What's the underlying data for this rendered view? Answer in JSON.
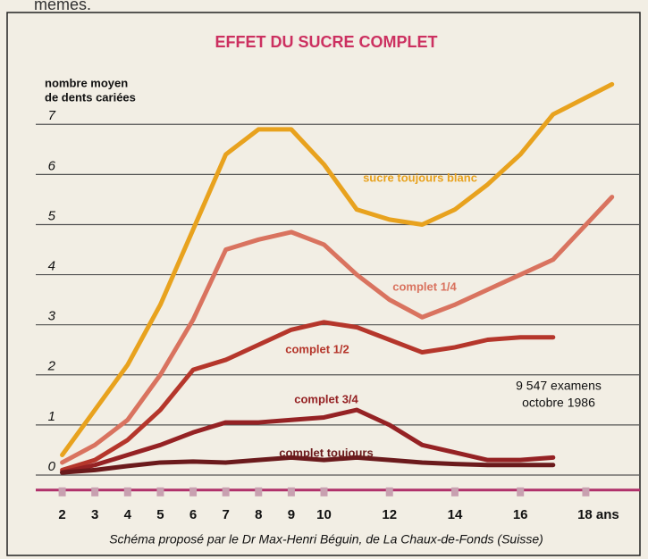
{
  "top_text": "mêmes.",
  "chart_data": {
    "type": "line",
    "title": "EFFET DU SUCRE COMPLET",
    "ylabel": [
      "nombre moyen",
      "de dents cariées"
    ],
    "x": [
      2,
      3,
      4,
      5,
      6,
      7,
      8,
      9,
      10,
      11,
      12,
      13,
      14,
      15,
      16,
      17,
      18.8
    ],
    "series": [
      {
        "name": "sucre toujours blanc",
        "color": "#e8a21e",
        "values": [
          0.4,
          1.3,
          2.2,
          3.4,
          4.9,
          6.4,
          6.9,
          6.9,
          6.2,
          5.3,
          5.1,
          5.0,
          5.3,
          5.8,
          6.4,
          7.2,
          7.8
        ]
      },
      {
        "name": "complet 1/4",
        "color": "#d9735f",
        "values": [
          0.25,
          0.6,
          1.1,
          2.0,
          3.1,
          4.5,
          4.7,
          4.85,
          4.6,
          4.0,
          3.5,
          3.15,
          3.4,
          3.7,
          4.0,
          4.3,
          5.55
        ]
      },
      {
        "name": "complet 1/2",
        "color": "#b5362b",
        "values": [
          0.1,
          0.3,
          0.7,
          1.3,
          2.1,
          2.3,
          2.6,
          2.9,
          3.05,
          2.95,
          2.7,
          2.45,
          2.55,
          2.7,
          2.75,
          2.75,
          null
        ]
      },
      {
        "name": "complet 3/4",
        "color": "#952224",
        "values": [
          0.05,
          0.2,
          0.4,
          0.6,
          0.85,
          1.05,
          1.05,
          1.1,
          1.15,
          1.3,
          1.0,
          0.6,
          0.45,
          0.3,
          0.3,
          0.35,
          null
        ]
      },
      {
        "name": "complet toujours",
        "color": "#6b1a1c",
        "values": [
          0.05,
          0.1,
          0.18,
          0.25,
          0.27,
          0.25,
          0.3,
          0.35,
          0.3,
          0.35,
          0.3,
          0.25,
          0.22,
          0.2,
          0.2,
          0.2,
          null
        ]
      }
    ],
    "xlim": [
      0.1,
      19.9
    ],
    "xticks": [
      2,
      3,
      4,
      5,
      6,
      7,
      8,
      9,
      10,
      12,
      14,
      16,
      {
        "value": 18,
        "label": "18 ans"
      }
    ],
    "ylim": [
      -0.3,
      7.7
    ],
    "yticks": [
      0,
      1,
      2,
      3,
      4,
      5,
      6,
      7
    ],
    "grid": true,
    "annotations": [
      "9 547 examens",
      "octobre 1986"
    ],
    "caption": "Schéma proposé par le Dr Max-Henri Béguin, de La Chaux-de-Fonds (Suisse)"
  }
}
